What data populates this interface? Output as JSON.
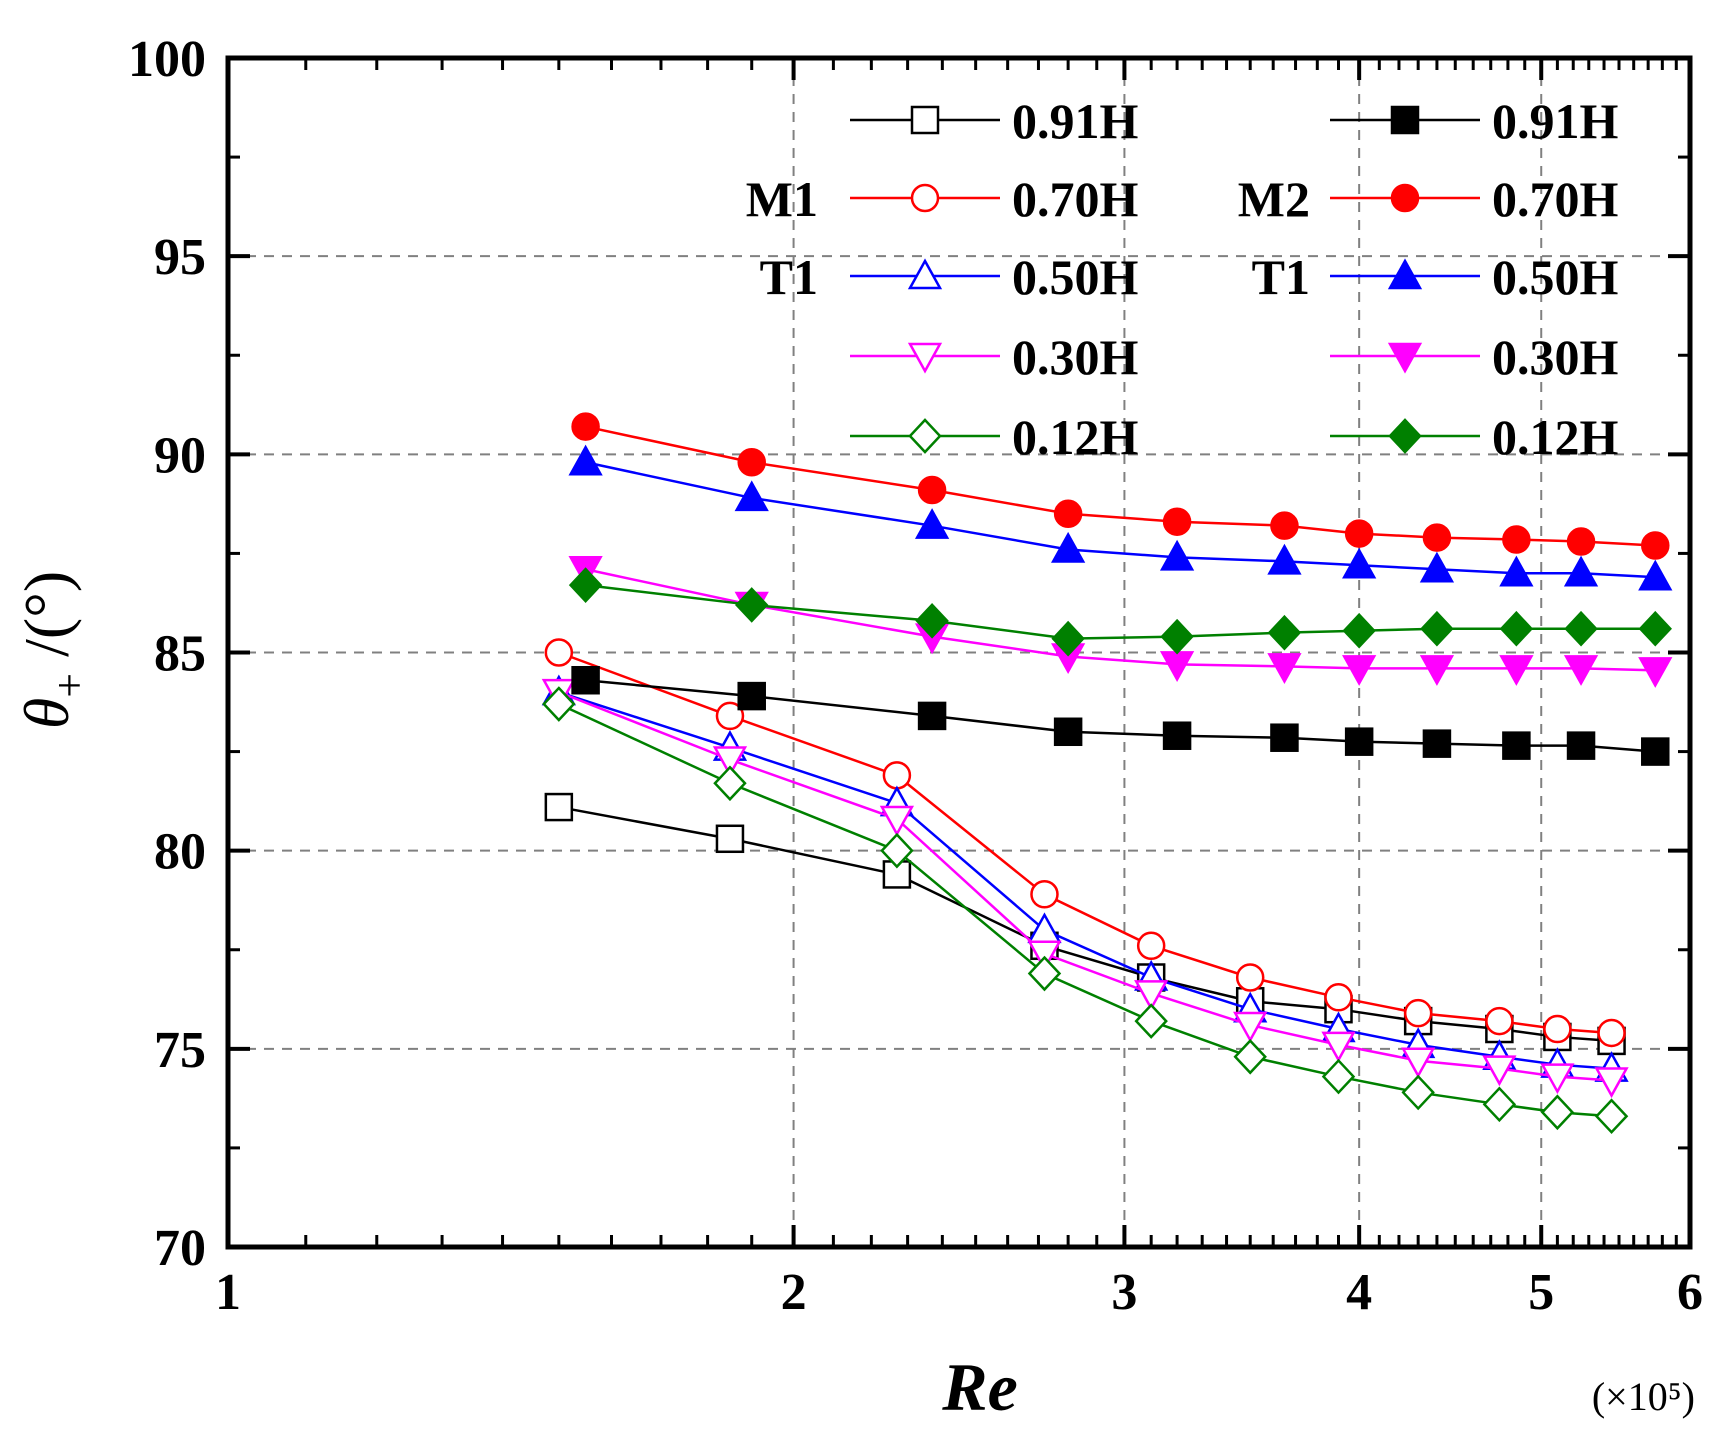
{
  "chart_data": {
    "type": "line",
    "xlabel": "Re",
    "x_unit": "(×10⁵)",
    "ylabel_symbol": "θ",
    "ylabel_subscript": "+",
    "ylabel_unit": " /(°)",
    "xscale": "log",
    "xlim": [
      1,
      6
    ],
    "ylim": [
      70,
      100
    ],
    "xticks": [
      1,
      2,
      3,
      4,
      5,
      6
    ],
    "yticks": [
      70,
      75,
      80,
      85,
      90,
      95,
      100
    ],
    "grid": true,
    "legend_position": "top-right",
    "legend_groups": [
      {
        "lines": [
          "M1",
          "T1"
        ]
      },
      {
        "lines": [
          "M2",
          "T1"
        ]
      }
    ],
    "series": [
      {
        "name": "0.91H",
        "group": "M1-T1",
        "color": "#000000",
        "marker": "square",
        "filled": false,
        "x": [
          1.5,
          1.85,
          2.27,
          2.72,
          3.1,
          3.5,
          3.9,
          4.3,
          4.75,
          5.1,
          5.45
        ],
        "y": [
          81.1,
          80.3,
          79.4,
          77.6,
          76.8,
          76.2,
          76.0,
          75.7,
          75.5,
          75.3,
          75.2
        ]
      },
      {
        "name": "0.70H",
        "group": "M1-T1",
        "color": "#ff0000",
        "marker": "circle",
        "filled": false,
        "x": [
          1.5,
          1.85,
          2.27,
          2.72,
          3.1,
          3.5,
          3.9,
          4.3,
          4.75,
          5.1,
          5.45
        ],
        "y": [
          85.0,
          83.4,
          81.9,
          78.9,
          77.6,
          76.8,
          76.3,
          75.9,
          75.7,
          75.5,
          75.4
        ]
      },
      {
        "name": "0.50H",
        "group": "M1-T1",
        "color": "#0000ff",
        "marker": "triangle-up",
        "filled": false,
        "x": [
          1.5,
          1.85,
          2.27,
          2.72,
          3.1,
          3.5,
          3.9,
          4.3,
          4.75,
          5.1,
          5.45
        ],
        "y": [
          84.0,
          82.6,
          81.2,
          78.0,
          76.8,
          76.0,
          75.5,
          75.1,
          74.8,
          74.6,
          74.5
        ]
      },
      {
        "name": "0.30H",
        "group": "M1-T1",
        "color": "#ff00ff",
        "marker": "triangle-down",
        "filled": false,
        "x": [
          1.5,
          1.85,
          2.27,
          2.72,
          3.1,
          3.5,
          3.9,
          4.3,
          4.75,
          5.1,
          5.45
        ],
        "y": [
          84.0,
          82.3,
          80.8,
          77.4,
          76.4,
          75.6,
          75.1,
          74.7,
          74.5,
          74.3,
          74.2
        ]
      },
      {
        "name": "0.12H",
        "group": "M1-T1",
        "color": "#008000",
        "marker": "diamond",
        "filled": false,
        "x": [
          1.5,
          1.85,
          2.27,
          2.72,
          3.1,
          3.5,
          3.9,
          4.3,
          4.75,
          5.1,
          5.45
        ],
        "y": [
          83.7,
          81.7,
          80.0,
          76.9,
          75.7,
          74.8,
          74.3,
          73.9,
          73.6,
          73.4,
          73.3
        ]
      },
      {
        "name": "0.91H",
        "group": "M2-T1",
        "color": "#000000",
        "marker": "square",
        "filled": true,
        "x": [
          1.55,
          1.9,
          2.37,
          2.8,
          3.2,
          3.65,
          4.0,
          4.4,
          4.85,
          5.25,
          5.75
        ],
        "y": [
          84.3,
          83.9,
          83.4,
          83.0,
          82.9,
          82.85,
          82.75,
          82.7,
          82.65,
          82.65,
          82.5
        ]
      },
      {
        "name": "0.70H",
        "group": "M2-T1",
        "color": "#ff0000",
        "marker": "circle",
        "filled": true,
        "x": [
          1.55,
          1.9,
          2.37,
          2.8,
          3.2,
          3.65,
          4.0,
          4.4,
          4.85,
          5.25,
          5.75
        ],
        "y": [
          90.7,
          89.8,
          89.1,
          88.5,
          88.3,
          88.2,
          88.0,
          87.9,
          87.85,
          87.8,
          87.7
        ]
      },
      {
        "name": "0.50H",
        "group": "M2-T1",
        "color": "#0000ff",
        "marker": "triangle-up",
        "filled": true,
        "x": [
          1.55,
          1.9,
          2.37,
          2.8,
          3.2,
          3.65,
          4.0,
          4.4,
          4.85,
          5.25,
          5.75
        ],
        "y": [
          89.8,
          88.9,
          88.2,
          87.6,
          87.4,
          87.3,
          87.2,
          87.1,
          87.0,
          87.0,
          86.9
        ]
      },
      {
        "name": "0.30H",
        "group": "M2-T1",
        "color": "#ff00ff",
        "marker": "triangle-down",
        "filled": true,
        "x": [
          1.55,
          1.9,
          2.37,
          2.8,
          3.2,
          3.65,
          4.0,
          4.4,
          4.85,
          5.25,
          5.75
        ],
        "y": [
          87.1,
          86.2,
          85.4,
          84.9,
          84.7,
          84.65,
          84.6,
          84.6,
          84.6,
          84.6,
          84.55
        ]
      },
      {
        "name": "0.12H",
        "group": "M2-T1",
        "color": "#008000",
        "marker": "diamond",
        "filled": true,
        "x": [
          1.55,
          1.9,
          2.37,
          2.8,
          3.2,
          3.65,
          4.0,
          4.4,
          4.85,
          5.25,
          5.75
        ],
        "y": [
          86.7,
          86.2,
          85.8,
          85.35,
          85.4,
          85.5,
          85.55,
          85.6,
          85.6,
          85.6,
          85.6
        ]
      }
    ]
  }
}
